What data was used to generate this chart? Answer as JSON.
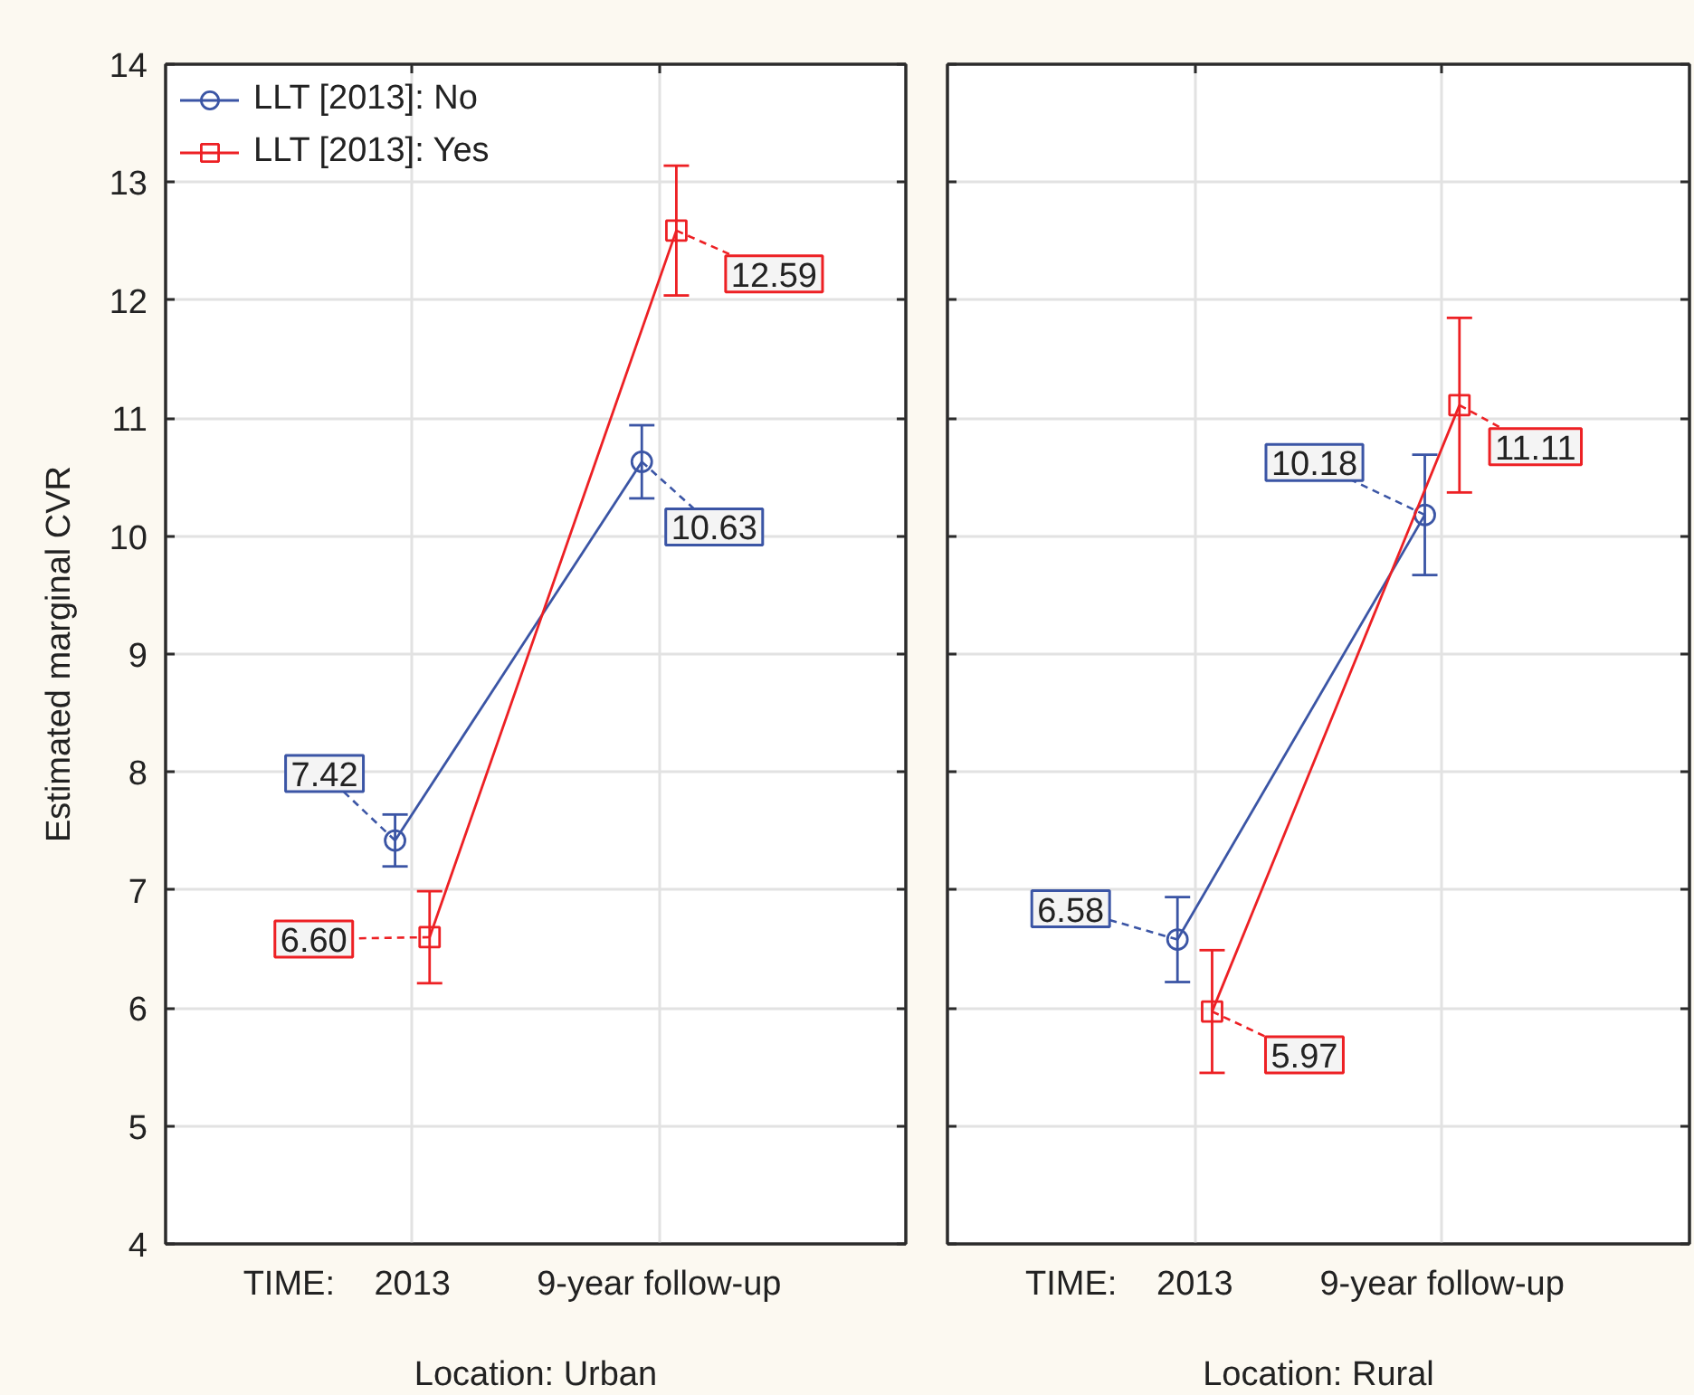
{
  "chart_data": [
    {
      "type": "line",
      "categories": [
        "2013",
        "9-year follow-up"
      ],
      "xlabel": "Location: Urban",
      "ylabel": "Estimated marginal CVR",
      "annotations": [
        "TIME:"
      ],
      "ylim": [
        4,
        14
      ],
      "yticks": [
        4,
        5,
        6,
        7,
        8,
        9,
        10,
        11,
        12,
        13,
        14
      ],
      "grid": true,
      "legend": "top left",
      "series": [
        {
          "name": "LLT [2013]: No",
          "color": "#3b55a5",
          "marker": "circle",
          "values": [
            7.42,
            10.63
          ],
          "errors": [
            0.22,
            0.31
          ],
          "value_labels": [
            "7.42",
            "10.63"
          ]
        },
        {
          "name": "LLT [2013]: Yes",
          "color": "#ed2024",
          "marker": "square",
          "values": [
            6.6,
            12.59
          ],
          "errors": [
            0.39,
            0.55
          ],
          "value_labels": [
            "6.60",
            "12.59"
          ]
        }
      ]
    },
    {
      "type": "line",
      "categories": [
        "2013",
        "9-year follow-up"
      ],
      "xlabel": "Location: Rural",
      "annotations": [
        "TIME:"
      ],
      "ylim": [
        4,
        14
      ],
      "yticks": [
        4,
        5,
        6,
        7,
        8,
        9,
        10,
        11,
        12,
        13,
        14
      ],
      "grid": true,
      "tick_labels": "x",
      "series": [
        {
          "color": "#3b55a5",
          "marker": "circle",
          "values": [
            6.58,
            10.18
          ],
          "errors": [
            0.36,
            0.51
          ],
          "value_labels": [
            "6.58",
            "10.18"
          ]
        },
        {
          "color": "#ed2024",
          "marker": "square",
          "values": [
            5.97,
            11.11
          ],
          "errors": [
            0.52,
            0.74
          ],
          "value_labels": [
            "5.97",
            "11.11"
          ]
        }
      ]
    }
  ]
}
